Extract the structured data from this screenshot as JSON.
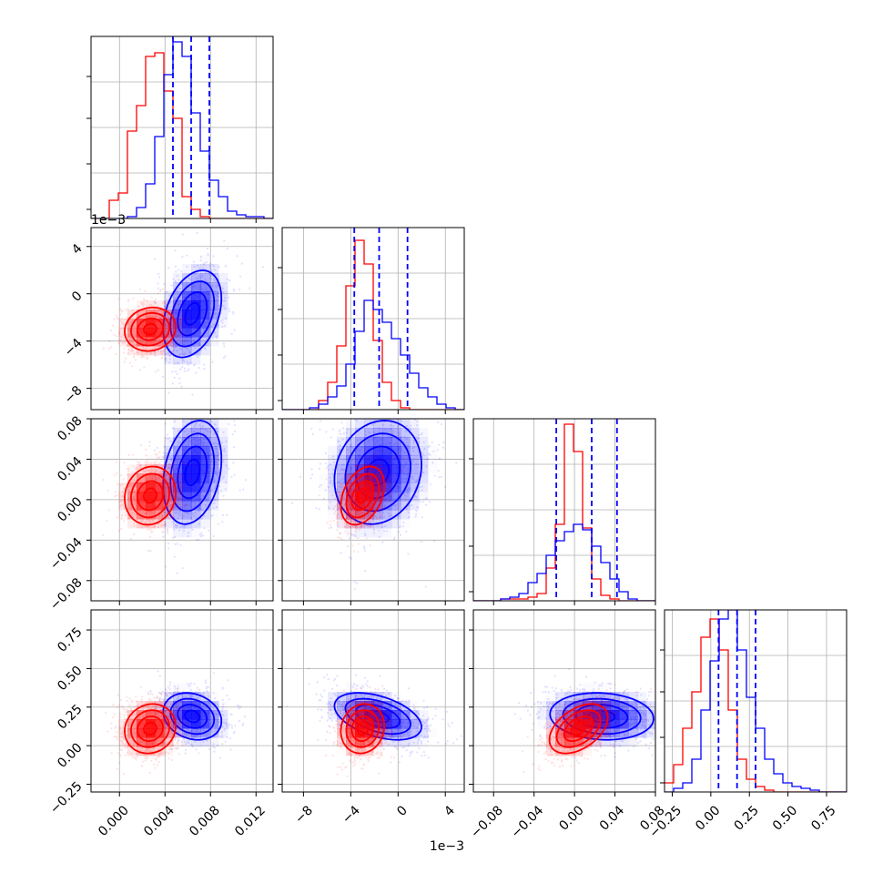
{
  "chart_data": {
    "type": "corner",
    "grid": true,
    "series": [
      {
        "color": "#ff0000"
      },
      {
        "color": "#0000ff"
      }
    ],
    "parameters": [
      {
        "range": [
          -0.0025,
          0.0135
        ],
        "ticks": [
          0.0,
          0.004,
          0.008,
          0.012
        ],
        "tick_labels": [
          "0.000",
          "0.004",
          "0.008",
          "0.012"
        ]
      },
      {
        "range": [
          -9.8,
          5.6
        ],
        "ticks": [
          -8,
          -4,
          0,
          4
        ],
        "tick_labels": [
          "−8",
          "−4",
          "0",
          "4"
        ],
        "offset_text": "1e−3"
      },
      {
        "range": [
          -0.1,
          0.08
        ],
        "ticks": [
          -0.08,
          -0.04,
          0.0,
          0.04,
          0.08
        ],
        "tick_labels": [
          "−0.08",
          "−0.04",
          "0.00",
          "0.04",
          "0.08"
        ]
      },
      {
        "range": [
          -0.3,
          0.88
        ],
        "ticks": [
          -0.25,
          0.0,
          0.25,
          0.5,
          0.75
        ],
        "tick_labels": [
          "−0.25",
          "0.00",
          "0.25",
          "0.50",
          "0.75"
        ]
      }
    ],
    "x_offset_text": "1e−3",
    "marginal_quantiles": [
      [
        0.0047,
        0.0063,
        0.0079
      ],
      [
        -3.7,
        -1.6,
        0.8
      ],
      [
        -0.018,
        0.017,
        0.042
      ],
      [
        0.05,
        0.17,
        0.29
      ]
    ],
    "histograms": [
      {
        "red": [
          0,
          0,
          0.1,
          0.14,
          0.48,
          0.62,
          0.89,
          0.91,
          0.7,
          0.55,
          0.12,
          0.05,
          0.01,
          0,
          0,
          0,
          0,
          0,
          0,
          0
        ],
        "blue": [
          0,
          0,
          0,
          0,
          0.01,
          0.06,
          0.19,
          0.45,
          0.79,
          0.97,
          0.89,
          0.58,
          0.37,
          0.21,
          0.12,
          0.04,
          0.02,
          0.01,
          0.01,
          0
        ]
      },
      {
        "red": [
          0,
          0,
          0,
          0,
          0.05,
          0.15,
          0.35,
          0.68,
          0.93,
          0.8,
          0.38,
          0.15,
          0.05,
          0.01,
          0,
          0,
          0,
          0,
          0,
          0
        ],
        "blue": [
          0,
          0,
          0,
          0.01,
          0.03,
          0.07,
          0.13,
          0.25,
          0.43,
          0.6,
          0.55,
          0.48,
          0.39,
          0.3,
          0.2,
          0.12,
          0.07,
          0.03,
          0.01,
          0
        ]
      },
      {
        "red": [
          0,
          0,
          0,
          0.01,
          0.01,
          0.01,
          0.02,
          0.04,
          0.18,
          0.42,
          0.97,
          0.82,
          0.4,
          0.12,
          0.03,
          0.01,
          0,
          0,
          0,
          0
        ],
        "blue": [
          0,
          0,
          0,
          0.01,
          0.02,
          0.04,
          0.1,
          0.15,
          0.25,
          0.33,
          0.38,
          0.42,
          0.39,
          0.3,
          0.21,
          0.12,
          0.05,
          0.01,
          0,
          0
        ]
      },
      {
        "red": [
          0.05,
          0.15,
          0.35,
          0.55,
          0.85,
          0.95,
          0.78,
          0.45,
          0.18,
          0.07,
          0.03,
          0.01,
          0,
          0,
          0,
          0,
          0,
          0,
          0,
          0
        ],
        "blue": [
          0,
          0.02,
          0.05,
          0.18,
          0.45,
          0.72,
          0.95,
          1.0,
          0.78,
          0.52,
          0.35,
          0.18,
          0.1,
          0.05,
          0.03,
          0.02,
          0.01,
          0,
          0,
          0
        ]
      }
    ],
    "distributions": {
      "red": {
        "mean": [
          0.0027,
          -3.0,
          0.004,
          0.11
        ],
        "sd": [
          0.0014,
          1.15,
          0.018,
          0.1
        ]
      },
      "blue": {
        "mean": [
          0.0064,
          -1.7,
          0.027,
          0.19
        ],
        "sd": [
          0.0016,
          2.3,
          0.032,
          0.095
        ]
      }
    },
    "contour_levels": [
      0.4,
      0.8,
      1.2,
      1.6
    ]
  }
}
